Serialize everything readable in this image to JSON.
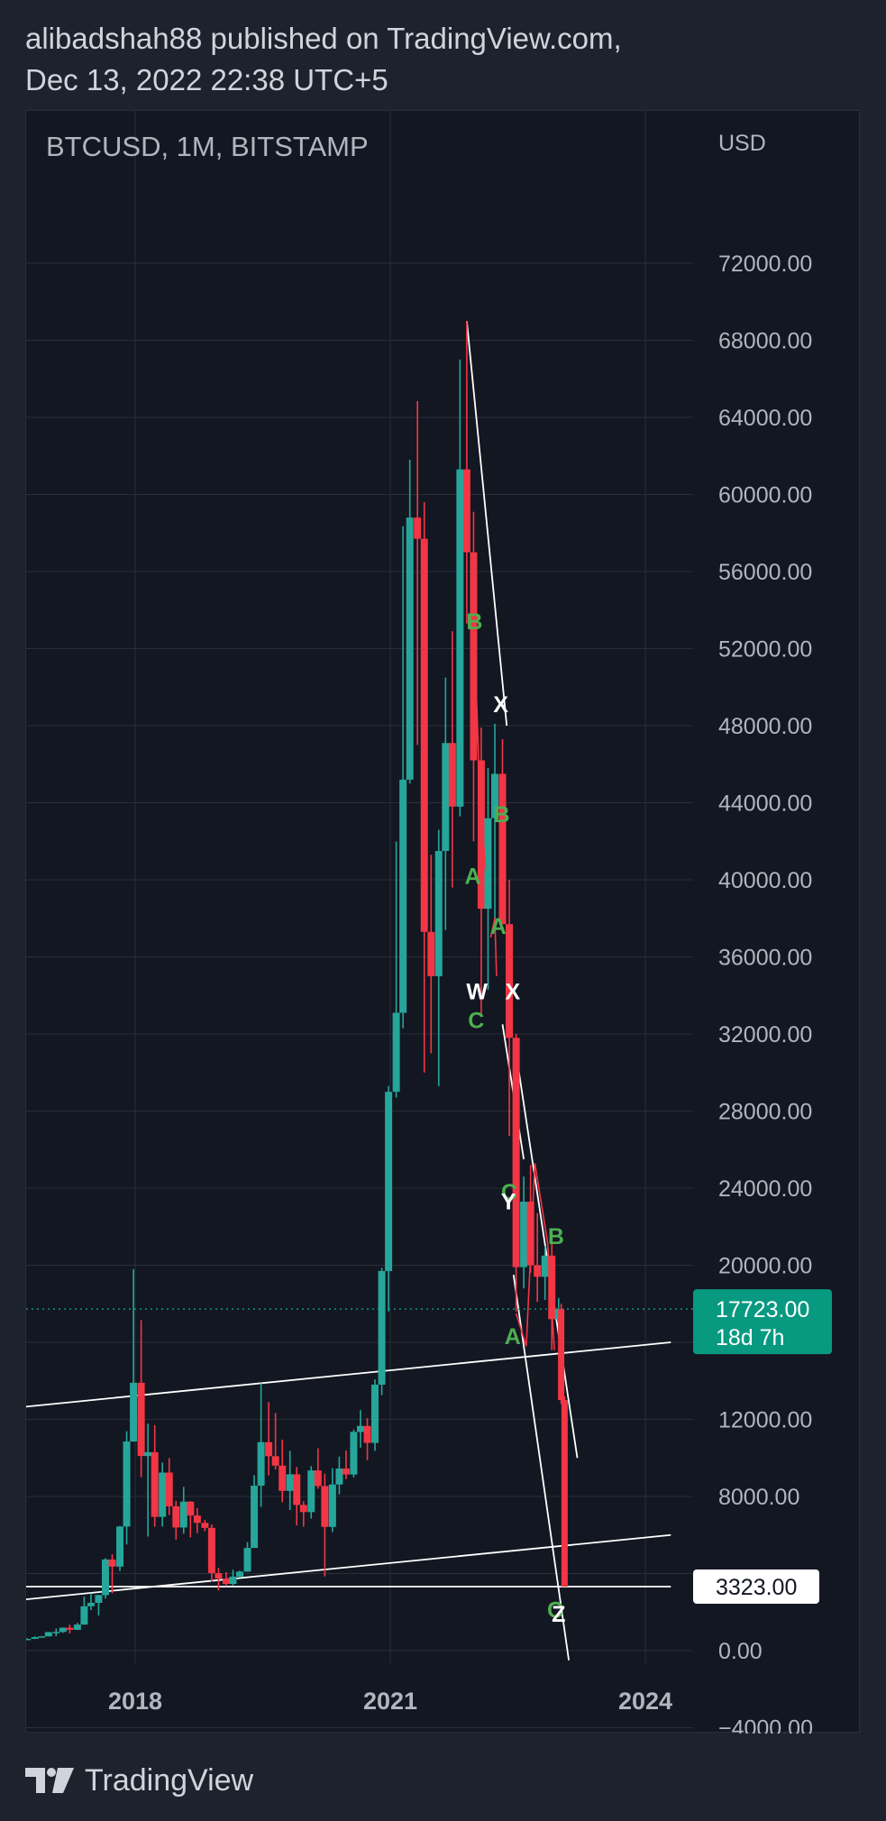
{
  "header": {
    "line1": "alibadshah88 published on TradingView.com,",
    "line2": "Dec 13, 2022 22:38 UTC+5"
  },
  "footer": {
    "brand": "TradingView",
    "logo_icon": "tradingview-logo-icon"
  },
  "chart_data": {
    "type": "candlestick",
    "title": "BTCUSD, 1M, BITSTAMP",
    "currency": "USD",
    "ylim": [
      -6000,
      72000
    ],
    "y_ticks": [
      -4000,
      0,
      8000,
      12000,
      20000,
      24000,
      28000,
      32000,
      36000,
      40000,
      44000,
      48000,
      52000,
      56000,
      60000,
      64000,
      68000,
      72000
    ],
    "y_tick_labels": [
      "−4000.00",
      "0.00",
      "8000.00",
      "12000.00",
      "20000.00",
      "24000.00",
      "28000.00",
      "32000.00",
      "36000.00",
      "40000.00",
      "44000.00",
      "48000.00",
      "52000.00",
      "56000.00",
      "60000.00",
      "64000.00",
      "68000.00",
      "72000.00"
    ],
    "x_ticks": [
      2018,
      2021,
      2024
    ],
    "x_tick_labels": [
      "2018",
      "2021",
      "2024"
    ],
    "x_range": [
      2016.35,
      2024.3
    ],
    "grid": true,
    "colors": {
      "up": "#26a69a",
      "down": "#f23645",
      "background": "#131722",
      "grid": "#2a2e39",
      "text": "#b2b5be",
      "wave_label": "#4caf50",
      "trendline": "#ffffff",
      "wave_line": "#f23645"
    },
    "last_price": {
      "value": 17723,
      "label": "17723.00",
      "countdown": "18d 7h",
      "color": "#089981"
    },
    "marked_level": {
      "value": 3323,
      "label": "3323.00"
    },
    "candles": [
      {
        "t": 2016.4,
        "o": 450,
        "h": 560,
        "l": 420,
        "c": 530
      },
      {
        "t": 2016.48,
        "o": 530,
        "h": 780,
        "l": 520,
        "c": 680
      },
      {
        "t": 2016.57,
        "o": 680,
        "h": 700,
        "l": 480,
        "c": 620
      },
      {
        "t": 2016.65,
        "o": 620,
        "h": 620,
        "l": 520,
        "c": 575
      },
      {
        "t": 2016.73,
        "o": 575,
        "h": 640,
        "l": 560,
        "c": 610
      },
      {
        "t": 2016.82,
        "o": 610,
        "h": 740,
        "l": 600,
        "c": 700
      },
      {
        "t": 2016.9,
        "o": 700,
        "h": 760,
        "l": 690,
        "c": 740
      },
      {
        "t": 2016.98,
        "o": 740,
        "h": 970,
        "l": 730,
        "c": 960
      },
      {
        "t": 2017.07,
        "o": 960,
        "h": 1150,
        "l": 750,
        "c": 970
      },
      {
        "t": 2017.15,
        "o": 970,
        "h": 1200,
        "l": 920,
        "c": 1190
      },
      {
        "t": 2017.23,
        "o": 1190,
        "h": 1350,
        "l": 890,
        "c": 1080
      },
      {
        "t": 2017.32,
        "o": 1080,
        "h": 1440,
        "l": 1070,
        "c": 1350
      },
      {
        "t": 2017.4,
        "o": 1350,
        "h": 2800,
        "l": 1350,
        "c": 2300
      },
      {
        "t": 2017.48,
        "o": 2300,
        "h": 2980,
        "l": 2100,
        "c": 2480
      },
      {
        "t": 2017.57,
        "o": 2480,
        "h": 2900,
        "l": 1830,
        "c": 2880
      },
      {
        "t": 2017.65,
        "o": 2880,
        "h": 4800,
        "l": 2700,
        "c": 4730
      },
      {
        "t": 2017.73,
        "o": 4730,
        "h": 5000,
        "l": 2970,
        "c": 4360
      },
      {
        "t": 2017.82,
        "o": 4360,
        "h": 6470,
        "l": 4130,
        "c": 6440
      },
      {
        "t": 2017.9,
        "o": 6440,
        "h": 11390,
        "l": 5510,
        "c": 10850
      },
      {
        "t": 2017.98,
        "o": 10850,
        "h": 19800,
        "l": 10850,
        "c": 13900
      },
      {
        "t": 2018.07,
        "o": 13900,
        "h": 17150,
        "l": 9000,
        "c": 10100
      },
      {
        "t": 2018.15,
        "o": 10100,
        "h": 11780,
        "l": 5920,
        "c": 10300
      },
      {
        "t": 2018.23,
        "o": 10300,
        "h": 11700,
        "l": 6430,
        "c": 6940
      },
      {
        "t": 2018.32,
        "o": 6940,
        "h": 9760,
        "l": 6440,
        "c": 9240
      },
      {
        "t": 2018.4,
        "o": 9240,
        "h": 9990,
        "l": 7040,
        "c": 7490
      },
      {
        "t": 2018.48,
        "o": 7490,
        "h": 7770,
        "l": 5760,
        "c": 6390
      },
      {
        "t": 2018.57,
        "o": 6390,
        "h": 8500,
        "l": 6070,
        "c": 7730
      },
      {
        "t": 2018.65,
        "o": 7730,
        "h": 7760,
        "l": 5880,
        "c": 7010
      },
      {
        "t": 2018.73,
        "o": 7010,
        "h": 7400,
        "l": 6100,
        "c": 6630
      },
      {
        "t": 2018.82,
        "o": 6630,
        "h": 6790,
        "l": 6200,
        "c": 6370
      },
      {
        "t": 2018.9,
        "o": 6370,
        "h": 6550,
        "l": 3570,
        "c": 4020
      },
      {
        "t": 2018.98,
        "o": 4020,
        "h": 4300,
        "l": 3120,
        "c": 3740
      },
      {
        "t": 2019.07,
        "o": 3740,
        "h": 4070,
        "l": 3350,
        "c": 3460
      },
      {
        "t": 2019.15,
        "o": 3460,
        "h": 4200,
        "l": 3380,
        "c": 3840
      },
      {
        "t": 2019.23,
        "o": 3840,
        "h": 4150,
        "l": 3790,
        "c": 4100
      },
      {
        "t": 2019.32,
        "o": 4100,
        "h": 5630,
        "l": 4090,
        "c": 5330
      },
      {
        "t": 2019.4,
        "o": 5330,
        "h": 9100,
        "l": 5330,
        "c": 8560
      },
      {
        "t": 2019.48,
        "o": 8560,
        "h": 13880,
        "l": 7460,
        "c": 10820
      },
      {
        "t": 2019.57,
        "o": 10820,
        "h": 12900,
        "l": 9090,
        "c": 10090
      },
      {
        "t": 2019.65,
        "o": 10090,
        "h": 12330,
        "l": 9400,
        "c": 9600
      },
      {
        "t": 2019.73,
        "o": 9600,
        "h": 10950,
        "l": 7700,
        "c": 8290
      },
      {
        "t": 2019.82,
        "o": 8290,
        "h": 10370,
        "l": 7300,
        "c": 9150
      },
      {
        "t": 2019.9,
        "o": 9150,
        "h": 9530,
        "l": 6500,
        "c": 7560
      },
      {
        "t": 2019.98,
        "o": 7560,
        "h": 7750,
        "l": 6430,
        "c": 7190
      },
      {
        "t": 2020.07,
        "o": 7190,
        "h": 9580,
        "l": 6850,
        "c": 9350
      },
      {
        "t": 2020.15,
        "o": 9350,
        "h": 10500,
        "l": 8400,
        "c": 8540
      },
      {
        "t": 2020.23,
        "o": 8540,
        "h": 9180,
        "l": 3850,
        "c": 6420
      },
      {
        "t": 2020.32,
        "o": 6420,
        "h": 9470,
        "l": 6150,
        "c": 8620
      },
      {
        "t": 2020.4,
        "o": 8620,
        "h": 10070,
        "l": 8110,
        "c": 9450
      },
      {
        "t": 2020.48,
        "o": 9450,
        "h": 10390,
        "l": 8900,
        "c": 9140
      },
      {
        "t": 2020.57,
        "o": 9140,
        "h": 11470,
        "l": 8990,
        "c": 11350
      },
      {
        "t": 2020.65,
        "o": 11350,
        "h": 12480,
        "l": 10530,
        "c": 11660
      },
      {
        "t": 2020.73,
        "o": 11660,
        "h": 12070,
        "l": 9880,
        "c": 10780
      },
      {
        "t": 2020.82,
        "o": 10780,
        "h": 14080,
        "l": 10370,
        "c": 13800
      },
      {
        "t": 2020.9,
        "o": 13800,
        "h": 19860,
        "l": 13250,
        "c": 19700
      },
      {
        "t": 2020.98,
        "o": 19700,
        "h": 29300,
        "l": 17600,
        "c": 29000
      },
      {
        "t": 2021.07,
        "o": 29000,
        "h": 41990,
        "l": 28700,
        "c": 33100
      },
      {
        "t": 2021.15,
        "o": 33100,
        "h": 58350,
        "l": 32300,
        "c": 45200
      },
      {
        "t": 2021.23,
        "o": 45200,
        "h": 61800,
        "l": 45000,
        "c": 58800
      },
      {
        "t": 2021.32,
        "o": 58800,
        "h": 64850,
        "l": 47000,
        "c": 57700
      },
      {
        "t": 2021.4,
        "o": 57700,
        "h": 59600,
        "l": 30000,
        "c": 37300
      },
      {
        "t": 2021.48,
        "o": 37300,
        "h": 41300,
        "l": 31000,
        "c": 35000
      },
      {
        "t": 2021.57,
        "o": 35000,
        "h": 42600,
        "l": 29300,
        "c": 41500
      },
      {
        "t": 2021.65,
        "o": 41500,
        "h": 50500,
        "l": 37400,
        "c": 47100
      },
      {
        "t": 2021.73,
        "o": 47100,
        "h": 52900,
        "l": 39600,
        "c": 43800
      },
      {
        "t": 2021.82,
        "o": 43800,
        "h": 67000,
        "l": 43300,
        "c": 61300
      },
      {
        "t": 2021.9,
        "o": 61300,
        "h": 69000,
        "l": 53300,
        "c": 57000
      },
      {
        "t": 2021.98,
        "o": 57000,
        "h": 59100,
        "l": 42000,
        "c": 46200
      },
      {
        "t": 2022.07,
        "o": 46200,
        "h": 47900,
        "l": 33000,
        "c": 38500
      },
      {
        "t": 2022.15,
        "o": 38500,
        "h": 45800,
        "l": 34300,
        "c": 43200
      },
      {
        "t": 2022.23,
        "o": 43200,
        "h": 48100,
        "l": 37600,
        "c": 45500
      },
      {
        "t": 2022.32,
        "o": 45500,
        "h": 47300,
        "l": 37700,
        "c": 37700
      },
      {
        "t": 2022.4,
        "o": 37700,
        "h": 40000,
        "l": 26700,
        "c": 31800
      },
      {
        "t": 2022.48,
        "o": 31800,
        "h": 32000,
        "l": 17600,
        "c": 19900
      },
      {
        "t": 2022.57,
        "o": 19900,
        "h": 24600,
        "l": 18800,
        "c": 23300
      },
      {
        "t": 2022.65,
        "o": 23300,
        "h": 25200,
        "l": 19600,
        "c": 20000
      },
      {
        "t": 2022.73,
        "o": 20000,
        "h": 22700,
        "l": 18100,
        "c": 19400
      },
      {
        "t": 2022.82,
        "o": 19400,
        "h": 21000,
        "l": 18200,
        "c": 20500
      },
      {
        "t": 2022.9,
        "o": 20500,
        "h": 21500,
        "l": 15600,
        "c": 17200
      },
      {
        "t": 2022.98,
        "o": 17200,
        "h": 18300,
        "l": 16600,
        "c": 17723
      }
    ],
    "projection": [
      {
        "t": 2023.01,
        "o": 17723,
        "h": 18000,
        "l": 12800,
        "c": 13000
      },
      {
        "t": 2023.05,
        "o": 13000,
        "h": 13200,
        "l": 3323,
        "c": 3323
      }
    ],
    "trendlines": [
      {
        "p1": [
          2016.35,
          12500
        ],
        "p2": [
          2024.3,
          16000
        ]
      },
      {
        "p1": [
          2016.35,
          2500
        ],
        "p2": [
          2024.3,
          6000
        ]
      },
      {
        "p1": [
          2016.35,
          3323
        ],
        "p2": [
          2024.3,
          3323
        ]
      },
      {
        "p1": [
          2021.9,
          69000
        ],
        "p2": [
          2022.37,
          48000
        ]
      },
      {
        "p1": [
          2022.32,
          32500
        ],
        "p2": [
          2022.57,
          25500
        ]
      },
      {
        "p1": [
          2022.48,
          31000
        ],
        "p2": [
          2023.2,
          10000
        ]
      },
      {
        "p1": [
          2022.45,
          19500
        ],
        "p2": [
          2023.1,
          -500
        ]
      }
    ],
    "wave_lines": [
      [
        [
          2021.98,
          53800
        ],
        [
          2022.05,
          45000
        ],
        [
          2022.12,
          40500
        ]
      ],
      [
        [
          2022.18,
          37000
        ],
        [
          2022.23,
          38000
        ],
        [
          2022.25,
          35000
        ]
      ],
      [
        [
          2022.48,
          17500
        ],
        [
          2022.6,
          15800
        ],
        [
          2022.7,
          25300
        ],
        [
          2022.85,
          21200
        ],
        [
          2022.93,
          15600
        ]
      ]
    ],
    "wave_labels": [
      {
        "text": "B",
        "t": 2021.99,
        "v": 53000,
        "color": "green"
      },
      {
        "text": "X",
        "t": 2022.3,
        "v": 48700,
        "color": "white"
      },
      {
        "text": "B",
        "t": 2022.31,
        "v": 43000,
        "color": "green"
      },
      {
        "text": "A",
        "t": 2021.97,
        "v": 39800,
        "color": "green"
      },
      {
        "text": "A",
        "t": 2022.27,
        "v": 37200,
        "color": "green"
      },
      {
        "text": "W",
        "t": 2022.02,
        "v": 33800,
        "color": "white"
      },
      {
        "text": "X",
        "t": 2022.44,
        "v": 33800,
        "color": "white"
      },
      {
        "text": "C",
        "t": 2022.01,
        "v": 32300,
        "color": "green"
      },
      {
        "text": "C",
        "t": 2022.4,
        "v": 23400,
        "color": "green"
      },
      {
        "text": "Y",
        "t": 2022.39,
        "v": 22900,
        "color": "white"
      },
      {
        "text": "B",
        "t": 2022.95,
        "v": 21100,
        "color": "green"
      },
      {
        "text": "A",
        "t": 2022.44,
        "v": 15900,
        "color": "green"
      },
      {
        "text": "C",
        "t": 2022.94,
        "v": 1700,
        "color": "green"
      },
      {
        "text": "Z",
        "t": 2022.98,
        "v": 1500,
        "color": "white"
      }
    ]
  }
}
